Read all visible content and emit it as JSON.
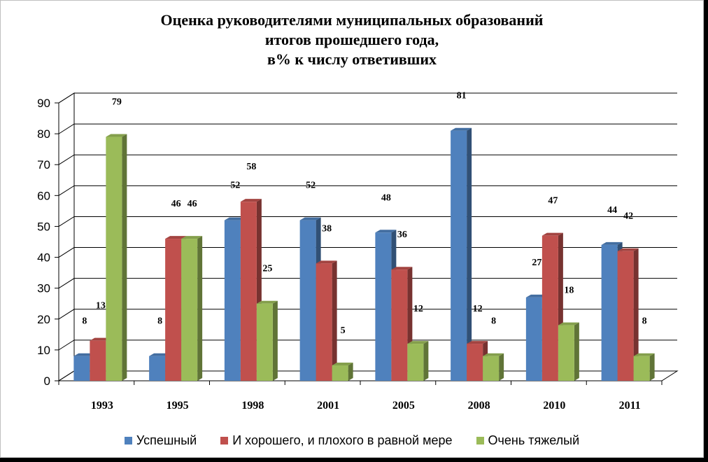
{
  "chart_data": {
    "type": "bar",
    "title_lines": [
      "Оценка руководителями  муниципальных образований",
      "итогов прошедшего года,",
      "в% к числу ответивших"
    ],
    "categories": [
      "1993",
      "1995",
      "1998",
      "2001",
      "2005",
      "2008",
      "2010",
      "2011"
    ],
    "series": [
      {
        "name": "Успешный",
        "color": "#4f81bd",
        "values": [
          8,
          8,
          52,
          52,
          48,
          81,
          27,
          44
        ],
        "labels": [
          "8",
          "8",
          "52",
          "52",
          "48",
          "81",
          "27",
          "44"
        ]
      },
      {
        "name": "И хорошего, и плохого в равной мере",
        "color": "#c0504d",
        "values": [
          13,
          46,
          58,
          38,
          36,
          12,
          47,
          42
        ],
        "labels": [
          "13",
          "46",
          "58",
          "38",
          "36",
          "12",
          "47",
          "42"
        ]
      },
      {
        "name": "Очень тяжелый",
        "color": "#9bbb59",
        "values": [
          79,
          46,
          25,
          5,
          12,
          8,
          18,
          8
        ],
        "labels": [
          "79",
          "46",
          "25",
          "5",
          "12",
          "8",
          "18",
          "8"
        ]
      }
    ],
    "y_ticks": [
      "0",
      "10",
      "20",
      "30",
      "40",
      "50",
      "60",
      "70",
      "80",
      "90"
    ],
    "ylim": [
      0,
      90
    ],
    "grid": true,
    "legend_position": "bottom",
    "style": "3d-clustered"
  }
}
